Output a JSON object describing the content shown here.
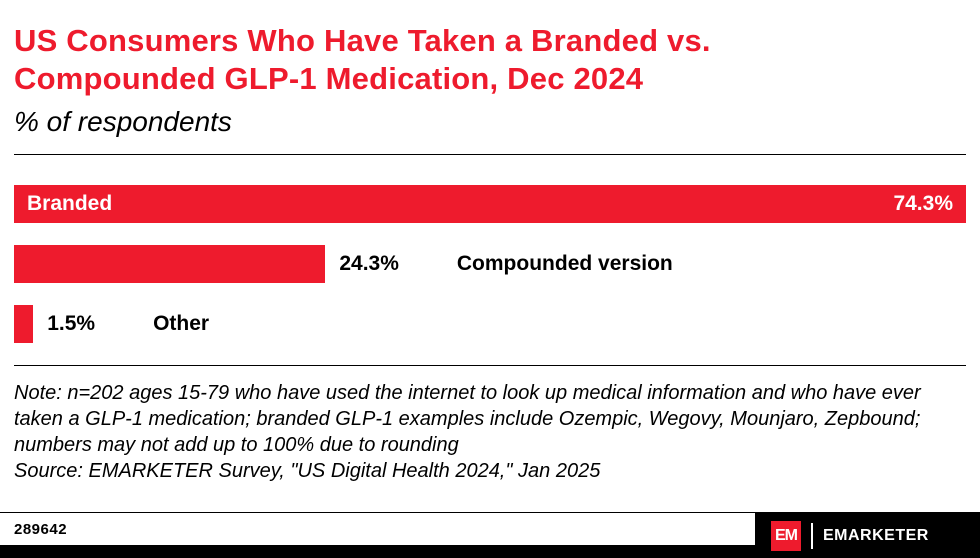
{
  "colors": {
    "accent": "#ee1b2d",
    "footer_bg": "#000000",
    "bar_color": "#ee1b2d"
  },
  "chart_data": {
    "type": "bar",
    "orientation": "horizontal",
    "title": "US Consumers Who Have Taken a Branded vs. Compounded GLP-1 Medication, Dec 2024",
    "subtitle_unit": "% of respondents",
    "max": 74.3,
    "xlim": [
      0,
      74.3
    ],
    "grid": false,
    "legend": false,
    "bars": [
      {
        "label": "Branded",
        "value": 74.3,
        "display": "74.3%"
      },
      {
        "label": "Compounded version",
        "value": 24.3,
        "display": "24.3%"
      },
      {
        "label": "Other",
        "value": 1.5,
        "display": "1.5%"
      }
    ]
  },
  "footnotes": {
    "note": "Note: n=202 ages 15-79 who have used the internet to look up medical information and who have ever taken a GLP-1 medication; branded GLP-1 examples include Ozempic, Wegovy, Mounjaro, Zepbound; numbers may not add up to 100% due to rounding",
    "source": "Source: EMARKETER Survey, \"US Digital Health 2024,\" Jan 2025"
  },
  "footer": {
    "chart_id": "289642",
    "logo_em": "EM",
    "brand": "EMARKETER"
  }
}
